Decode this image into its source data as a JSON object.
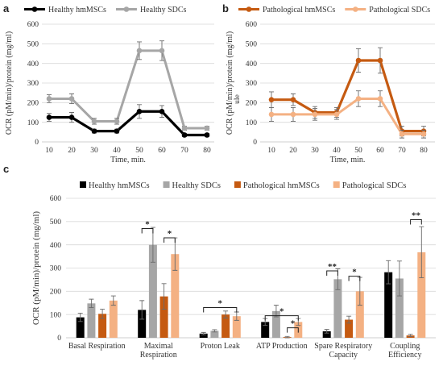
{
  "panels": {
    "a": "a",
    "b": "b",
    "c": "c"
  },
  "colors": {
    "healthy_hmscs": "#000000",
    "healthy_sdcs": "#a6a6a6",
    "pathological_hmscs": "#c55a11",
    "pathological_sdcs": "#f4b183"
  },
  "chart_data": [
    {
      "panel": "a",
      "type": "line",
      "x": [
        10,
        20,
        30,
        40,
        50,
        60,
        70,
        80
      ],
      "xlabel": "Time, min.",
      "ylabel": "OCR (pM/min)/protein (mg/ml)",
      "ylim": [
        0,
        600
      ],
      "yticks": [
        0,
        100,
        200,
        300,
        400,
        500,
        600
      ],
      "grid": true,
      "legend": "top",
      "series": [
        {
          "name": "Healthy hmMSCs",
          "color": "#000000",
          "values": [
            125,
            125,
            55,
            55,
            155,
            155,
            35,
            35
          ],
          "errors": [
            20,
            25,
            10,
            10,
            35,
            30,
            8,
            8
          ]
        },
        {
          "name": "Healthy SDCs",
          "color": "#a6a6a6",
          "values": [
            220,
            220,
            105,
            105,
            465,
            465,
            70,
            70
          ],
          "errors": [
            20,
            25,
            15,
            15,
            45,
            50,
            10,
            10
          ]
        }
      ]
    },
    {
      "panel": "b",
      "type": "line",
      "x": [
        10,
        20,
        30,
        40,
        50,
        60,
        70,
        80
      ],
      "xlabel": "Time, min.",
      "ylabel": "OCR (pM/min)/protein (mg/ml)",
      "ylabel_extra": "ule",
      "ylim": [
        0,
        600
      ],
      "yticks": [
        0,
        100,
        200,
        300,
        400,
        500,
        600
      ],
      "grid": true,
      "legend": "top",
      "series": [
        {
          "name": "Pathological hmMSCs",
          "color": "#c55a11",
          "values": [
            215,
            215,
            150,
            150,
            415,
            415,
            55,
            55
          ],
          "errors": [
            40,
            30,
            30,
            25,
            60,
            65,
            25,
            25
          ]
        },
        {
          "name": "Pathological SDCs",
          "color": "#f4b183",
          "values": [
            140,
            140,
            140,
            140,
            220,
            220,
            40,
            40
          ],
          "errors": [
            35,
            35,
            30,
            25,
            40,
            40,
            20,
            20
          ]
        }
      ]
    },
    {
      "panel": "c",
      "type": "bar",
      "categories": [
        "Basal Respiration",
        "Maximal Respiration",
        "Proton Leak",
        "ATP Production",
        "Spare Respiratory Capacity",
        "Coupling Efficiency"
      ],
      "category_lines": [
        [
          "Basal Respiration"
        ],
        [
          "Maximal",
          "Respiration"
        ],
        [
          "Proton Leak"
        ],
        [
          "ATP Production"
        ],
        [
          "Spare Respiratory",
          "Capacity"
        ],
        [
          "Coupling",
          "Efficiency"
        ]
      ],
      "ylabel": "OCR (pM/min)/protein (mg/ml)",
      "ylim": [
        0,
        600
      ],
      "yticks": [
        0,
        100,
        200,
        300,
        400,
        500,
        600
      ],
      "grid": true,
      "legend": "top",
      "series": [
        {
          "name": "Healthy hmMSCs",
          "color": "#000000",
          "values": [
            88,
            120,
            18,
            68,
            28,
            282
          ],
          "errors": [
            18,
            40,
            5,
            15,
            8,
            50
          ]
        },
        {
          "name": "Healthy SDCs",
          "color": "#a6a6a6",
          "values": [
            148,
            400,
            30,
            115,
            252,
            255
          ],
          "errors": [
            18,
            75,
            5,
            25,
            45,
            75
          ]
        },
        {
          "name": "Pathological hmMSCs",
          "color": "#c55a11",
          "values": [
            103,
            178,
            100,
            3,
            78,
            10
          ],
          "errors": [
            20,
            55,
            15,
            3,
            15,
            5
          ]
        },
        {
          "name": "Pathological SDCs",
          "color": "#f4b183",
          "values": [
            160,
            360,
            93,
            68,
            200,
            368
          ],
          "errors": [
            20,
            70,
            18,
            15,
            60,
            110
          ]
        }
      ],
      "significance": [
        {
          "category": 1,
          "from_series": 0,
          "to_series": 1,
          "level": 470,
          "label": "*"
        },
        {
          "category": 1,
          "from_series": 2,
          "to_series": 3,
          "level": 430,
          "label": "*"
        },
        {
          "category": 2,
          "from_series": 0,
          "to_series": 3,
          "level": 130,
          "label": "*"
        },
        {
          "category": 3,
          "from_series": 0,
          "to_series": 3,
          "level": 95,
          "label": "*"
        },
        {
          "category": 3,
          "from_series": 2,
          "to_series": 3,
          "level": 43,
          "label": "*"
        },
        {
          "category": 4,
          "from_series": 0,
          "to_series": 1,
          "level": 288,
          "label": "**"
        },
        {
          "category": 4,
          "from_series": 2,
          "to_series": 3,
          "level": 265,
          "label": "*"
        },
        {
          "category": 5,
          "from_series": 2,
          "to_series": 3,
          "level": 508,
          "label": "**"
        }
      ]
    }
  ]
}
